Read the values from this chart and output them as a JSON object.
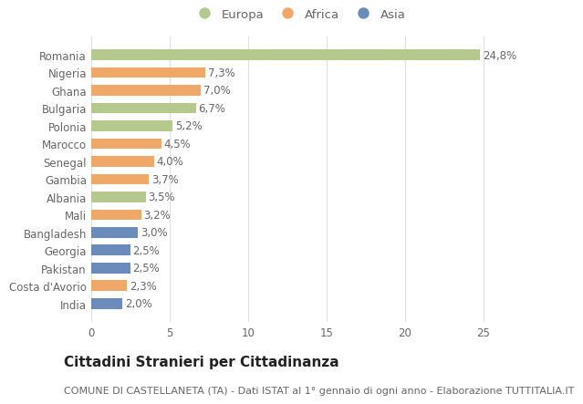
{
  "categories": [
    "Romania",
    "Nigeria",
    "Ghana",
    "Bulgaria",
    "Polonia",
    "Marocco",
    "Senegal",
    "Gambia",
    "Albania",
    "Mali",
    "Bangladesh",
    "Georgia",
    "Pakistan",
    "Costa d'Avorio",
    "India"
  ],
  "values": [
    24.8,
    7.3,
    7.0,
    6.7,
    5.2,
    4.5,
    4.0,
    3.7,
    3.5,
    3.2,
    3.0,
    2.5,
    2.5,
    2.3,
    2.0
  ],
  "labels": [
    "24,8%",
    "7,3%",
    "7,0%",
    "6,7%",
    "5,2%",
    "4,5%",
    "4,0%",
    "3,7%",
    "3,5%",
    "3,2%",
    "3,0%",
    "2,5%",
    "2,5%",
    "2,3%",
    "2,0%"
  ],
  "continents": [
    "Europa",
    "Africa",
    "Africa",
    "Europa",
    "Europa",
    "Africa",
    "Africa",
    "Africa",
    "Europa",
    "Africa",
    "Asia",
    "Asia",
    "Asia",
    "Africa",
    "Asia"
  ],
  "colors": {
    "Europa": "#b5c98e",
    "Africa": "#f0a868",
    "Asia": "#6b8cba"
  },
  "legend_labels": [
    "Europa",
    "Africa",
    "Asia"
  ],
  "title": "Cittadini Stranieri per Cittadinanza",
  "subtitle": "COMUNE DI CASTELLANETA (TA) - Dati ISTAT al 1° gennaio di ogni anno - Elaborazione TUTTITALIA.IT",
  "xlim": [
    0,
    26.5
  ],
  "xticks": [
    0,
    5,
    10,
    15,
    20,
    25
  ],
  "background_color": "#ffffff",
  "grid_color": "#e0e0e0",
  "bar_height": 0.6,
  "label_fontsize": 8.5,
  "title_fontsize": 11,
  "subtitle_fontsize": 8,
  "ytick_fontsize": 8.5,
  "xtick_fontsize": 8.5,
  "legend_fontsize": 9.5,
  "text_color": "#666666",
  "title_color": "#222222"
}
